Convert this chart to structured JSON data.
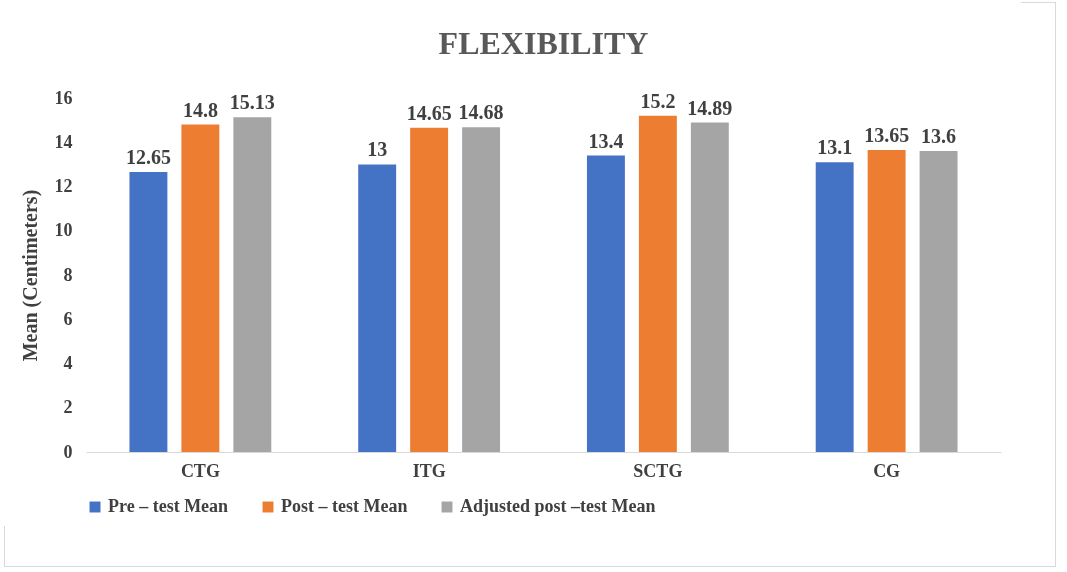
{
  "chart_data": {
    "type": "bar",
    "title": "FLEXIBILITY",
    "ylabel": "Mean (Centimeters)",
    "categories": [
      "CTG",
      "ITG",
      "SCTG",
      "CG"
    ],
    "series": [
      {
        "name": "Pre – test Mean",
        "color": "#4472c4",
        "values": [
          12.65,
          13,
          13.4,
          13.1
        ]
      },
      {
        "name": "Post – test Mean",
        "color": "#ed7d31",
        "values": [
          14.8,
          14.65,
          15.2,
          13.65
        ]
      },
      {
        "name": "Adjusted post –test Mean",
        "color": "#a5a5a5",
        "values": [
          15.13,
          14.68,
          14.89,
          13.6
        ]
      }
    ],
    "ylim": [
      0,
      16
    ],
    "yticks": [
      0,
      2,
      4,
      6,
      8,
      10,
      12,
      14,
      16
    ],
    "grid": false,
    "legend": "bottom",
    "data_labels": true
  }
}
